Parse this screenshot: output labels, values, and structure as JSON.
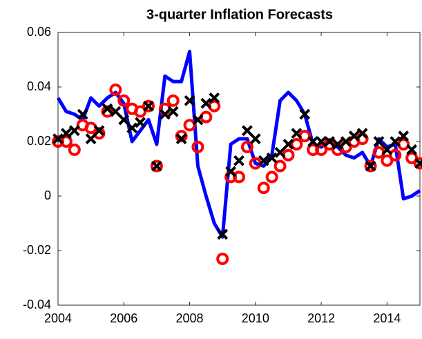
{
  "chart_data": {
    "type": "line",
    "title": "3-quarter Inflation Forecasts",
    "x": [
      2004,
      2004.25,
      2004.5,
      2004.75,
      2005,
      2005.25,
      2005.5,
      2005.75,
      2006,
      2006.25,
      2006.5,
      2006.75,
      2007,
      2007.25,
      2007.5,
      2007.75,
      2008,
      2008.25,
      2008.5,
      2008.75,
      2009,
      2009.25,
      2009.5,
      2009.75,
      2010,
      2010.25,
      2010.5,
      2010.75,
      2011,
      2011.25,
      2011.5,
      2011.75,
      2012,
      2012.25,
      2012.5,
      2012.75,
      2013,
      2013.25,
      2013.5,
      2013.75,
      2014,
      2014.25,
      2014.5,
      2014.75,
      2015
    ],
    "series": [
      {
        "color": "#0000ff",
        "marker": "line",
        "values": [
          0.036,
          0.031,
          0.03,
          0.028,
          0.036,
          0.033,
          0.036,
          0.038,
          0.034,
          0.02,
          0.024,
          0.028,
          0.019,
          0.044,
          0.042,
          0.042,
          0.053,
          0.011,
          0.0,
          -0.01,
          -0.015,
          0.019,
          0.021,
          0.021,
          0.012,
          0.011,
          0.015,
          0.035,
          0.038,
          0.035,
          0.03,
          0.019,
          0.018,
          0.02,
          0.018,
          0.015,
          0.014,
          0.016,
          0.011,
          0.021,
          0.018,
          0.019,
          -0.001,
          0.0,
          0.002
        ]
      },
      {
        "color": "#ff0000",
        "marker": "circle",
        "values": [
          0.02,
          0.02,
          0.017,
          0.026,
          0.025,
          0.023,
          0.031,
          0.039,
          0.035,
          0.032,
          0.031,
          0.033,
          0.011,
          0.032,
          0.035,
          0.022,
          0.026,
          0.018,
          0.029,
          0.033,
          -0.023,
          0.007,
          0.007,
          0.018,
          0.012,
          0.003,
          0.007,
          0.011,
          0.015,
          0.019,
          0.022,
          0.017,
          0.017,
          0.019,
          0.017,
          0.018,
          0.02,
          0.021,
          0.011,
          0.016,
          0.013,
          0.015,
          0.019,
          0.014,
          0.012
        ]
      },
      {
        "color": "#000000",
        "marker": "x",
        "values": [
          0.021,
          0.023,
          0.024,
          0.03,
          0.021,
          0.024,
          0.032,
          0.031,
          0.028,
          0.025,
          0.027,
          0.033,
          0.011,
          0.03,
          0.031,
          0.021,
          0.035,
          0.028,
          0.034,
          0.036,
          -0.014,
          0.009,
          0.013,
          0.024,
          0.021,
          0.013,
          0.014,
          0.016,
          0.019,
          0.023,
          0.03,
          0.02,
          0.02,
          0.02,
          0.019,
          0.02,
          0.022,
          0.023,
          0.011,
          0.02,
          0.017,
          0.02,
          0.022,
          0.017,
          0.012
        ]
      }
    ],
    "xlim": [
      2004,
      2015
    ],
    "xticks": [
      2004,
      2006,
      2008,
      2010,
      2012,
      2014
    ],
    "ylim": [
      -0.04,
      0.06
    ],
    "yticks": [
      -0.04,
      -0.02,
      0,
      0.02,
      0.04,
      0.06
    ]
  }
}
